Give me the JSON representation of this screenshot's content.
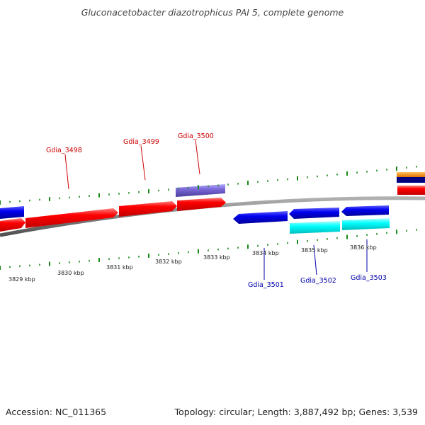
{
  "title": "Gluconacetobacter diazotrophicus PAI 5, complete genome",
  "footer": {
    "accession": "Accession: NC_011365",
    "summary": "Topology: circular; Length: 3,887,492 bp; Genes: 3,539"
  },
  "scale_labels": [
    "3829 kbp",
    "3830 kbp",
    "3831 kbp",
    "3832 kbp",
    "3833 kbp",
    "3834 kbp",
    "3835 kbp",
    "3836 kbp"
  ],
  "gene_labels": {
    "forward": [
      "Gdia_3498",
      "Gdia_3499",
      "Gdia_3500"
    ],
    "reverse": [
      "Gdia_3501",
      "Gdia_3502",
      "Gdia_3503"
    ]
  },
  "colors": {
    "forward_cds": "#ff0000",
    "reverse_cds": "#0000ee",
    "forward_label": "#cc0000",
    "reverse_label": "#0000aa",
    "tick": "#1a8a1a",
    "backbone": "#808080",
    "gene_3500": "#7b68d8",
    "cyan_feature": "#00ffff",
    "orange_feature": "#ff8c00",
    "navy_feature": "#000080"
  }
}
